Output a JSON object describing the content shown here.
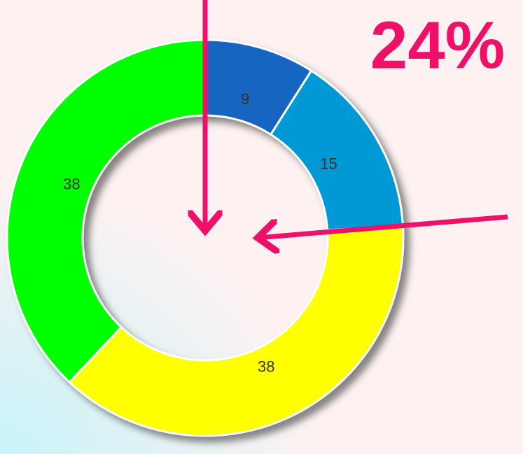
{
  "chart_data": {
    "type": "donut",
    "categories": [
      null,
      null,
      null,
      null
    ],
    "values": [
      9,
      15,
      38,
      38
    ],
    "colors": [
      "#1565c0",
      "#0099d6",
      "#ffff00",
      "#00ff00"
    ],
    "annotation": "24%"
  }
}
